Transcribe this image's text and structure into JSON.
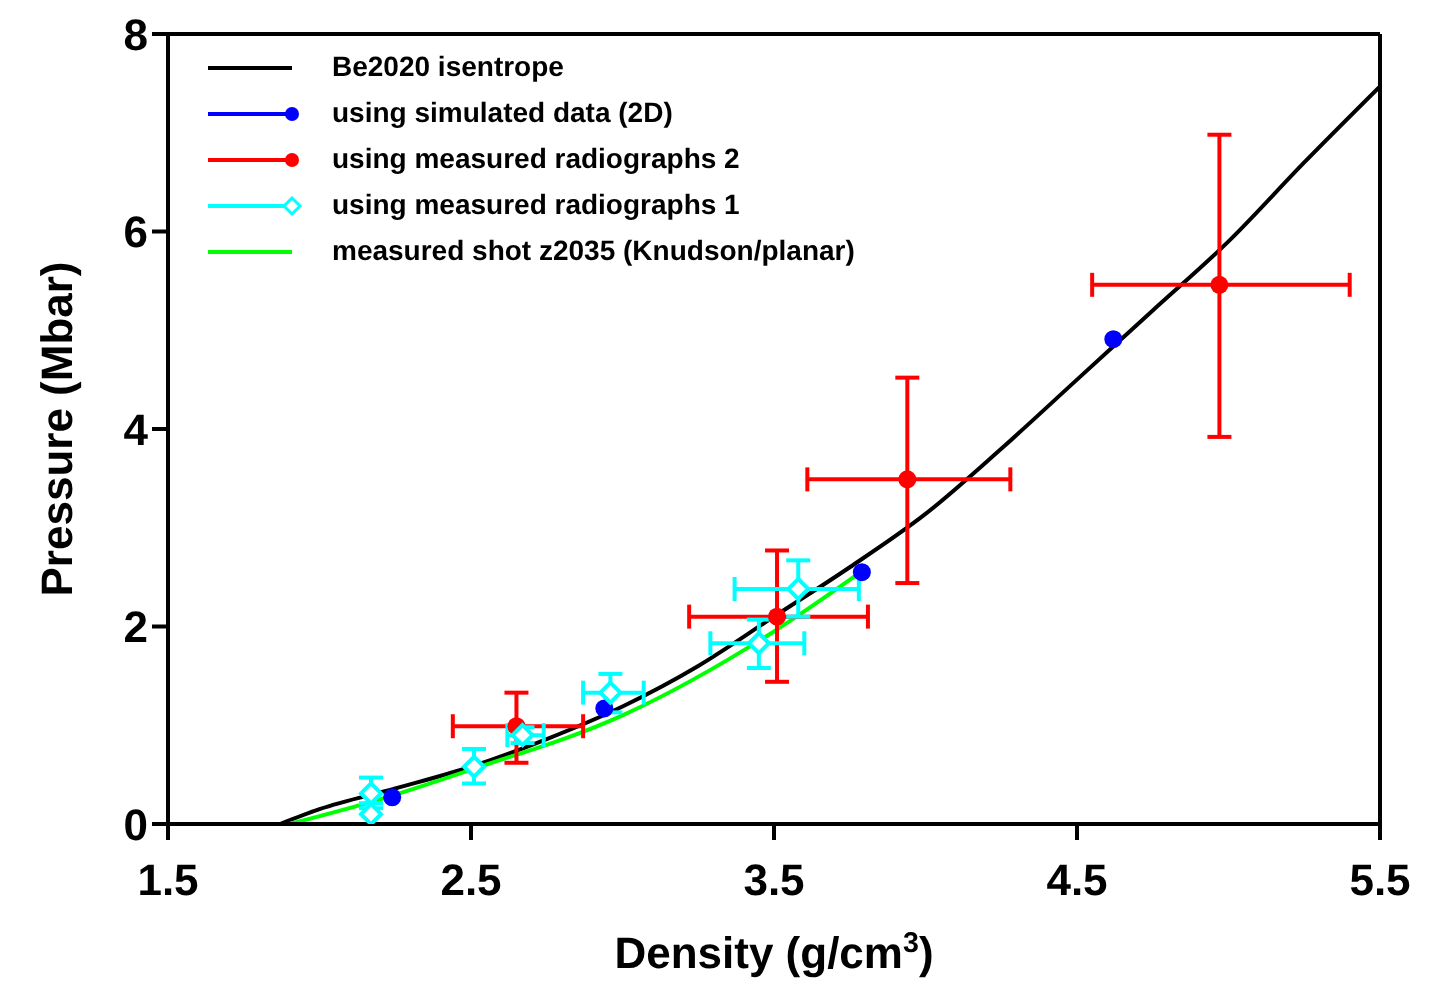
{
  "chart_data": {
    "type": "line",
    "xlabel": "Density  (g/cm$^{3}$)",
    "ylabel": "Pressure  (Mbar)",
    "xlim": [
      1.5,
      5.5
    ],
    "xticks": [
      1.5,
      2.5,
      3.5,
      4.5,
      5.5
    ],
    "ylim": [
      0,
      8
    ],
    "yticks": [
      0,
      2,
      4,
      6,
      8
    ],
    "grid": false,
    "legend": "top left",
    "series": [
      {
        "name": "Be2020 isentrope",
        "color": "#000000",
        "marker": "none",
        "x": [
          1.87,
          2.0,
          2.25,
          2.5,
          2.75,
          3.0,
          3.25,
          3.5,
          3.75,
          4.0,
          4.25,
          4.5,
          4.75,
          5.0,
          5.25,
          5.5
        ],
        "values": [
          0,
          0.15,
          0.36,
          0.58,
          0.86,
          1.19,
          1.6,
          2.1,
          2.6,
          3.14,
          3.8,
          4.5,
          5.2,
          5.9,
          6.7,
          7.47
        ]
      },
      {
        "name": "using simulated data (2D)",
        "type": "scatter",
        "color": "#0000ff",
        "marker": "circle",
        "x": [
          2.24,
          2.94,
          3.79,
          4.62
        ],
        "values": [
          0.27,
          1.17,
          2.55,
          4.91
        ]
      },
      {
        "name": "using measured radiographs 2",
        "type": "scatter",
        "color": "#ff0000",
        "marker": "circle",
        "x": [
          2.65,
          3.51,
          3.94,
          4.97
        ],
        "values": [
          0.99,
          2.1,
          3.49,
          5.46
        ],
        "errors": [
          [
            0.62,
            1.33
          ],
          [
            1.44,
            2.77
          ],
          [
            2.44,
            4.52
          ],
          [
            3.92,
            6.98
          ]
        ],
        "xerrors": [
          [
            2.44,
            2.87
          ],
          [
            3.22,
            3.81
          ],
          [
            3.61,
            4.28
          ],
          [
            4.55,
            5.4
          ]
        ]
      },
      {
        "name": "using measured radiographs 1",
        "type": "scatter",
        "color": "#00ffff",
        "marker": "diamond",
        "x": [
          2.17,
          2.17,
          2.51,
          2.67,
          2.96,
          3.45,
          3.58
        ],
        "values": [
          0.31,
          0.1,
          0.58,
          0.9,
          1.33,
          1.83,
          2.38
        ],
        "errors": [
          [
            0.16,
            0.47
          ],
          [
            0,
            0.21
          ],
          [
            0.41,
            0.76
          ],
          [
            0.82,
            0.98
          ],
          [
            1.13,
            1.52
          ],
          [
            1.58,
            2.07
          ],
          [
            2.1,
            2.67
          ]
        ],
        "xerrors": [
          null,
          null,
          null,
          [
            2.62,
            2.74
          ],
          [
            2.87,
            3.07
          ],
          [
            3.29,
            3.6
          ],
          [
            3.37,
            3.78
          ]
        ]
      },
      {
        "name": "measured shot z2035 (Knudson/planar)",
        "color": "#00ff00",
        "marker": "none",
        "x": [
          1.9,
          2.2,
          2.5,
          3.0,
          3.5,
          3.8
        ],
        "values": [
          0,
          0.25,
          0.55,
          1.1,
          1.95,
          2.58
        ]
      }
    ]
  }
}
